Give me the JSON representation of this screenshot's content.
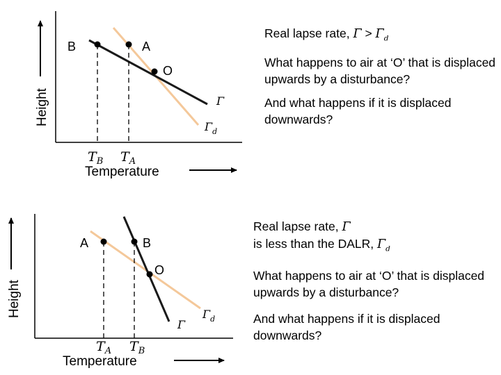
{
  "diagram1": {
    "point_b": "B",
    "point_a": "A",
    "point_o": "O",
    "gamma_label": "Γ",
    "gamma_d_label": "Γ",
    "gamma_d_sub": "d",
    "t_b": "T",
    "t_b_sub": "B",
    "t_a": "T",
    "t_a_sub": "A",
    "ylabel": "Height",
    "xlabel": "Temperature"
  },
  "diagram2": {
    "point_a": "A",
    "point_b": "B",
    "point_o": "O",
    "gamma_label": "Γ",
    "gamma_d_label": "Γ",
    "gamma_d_sub": "d",
    "t_a": "T",
    "t_a_sub": "A",
    "t_b": "T",
    "t_b_sub": "B",
    "ylabel": "Height",
    "xlabel": "Temperature"
  },
  "text1": {
    "heading_prefix": "Real lapse rate, ",
    "heading_gamma": "Γ",
    "heading_mid": " > ",
    "heading_gamma_d": "Γ",
    "heading_sub": "d",
    "q1": "What happens to air at ‘O’ that is displaced upwards by a disturbance?",
    "q2": "And what happens if it is displaced downwards?"
  },
  "text2": {
    "heading_prefix": "Real lapse rate, ",
    "heading_gamma": "Γ",
    "heading_line2": "is less than the DALR, ",
    "heading_gamma_d": "Γ",
    "heading_sub": "d",
    "q1": "What happens to air at ‘O’ that is displaced upwards by a disturbance?",
    "q2": "And what happens if it is displaced downwards?"
  },
  "colors": {
    "environment_line": "#1a1a1a",
    "dalr_line": "#f4c89a",
    "axis": "#000000"
  }
}
